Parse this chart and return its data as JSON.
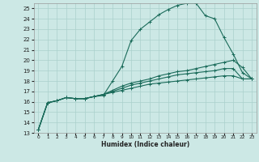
{
  "xlabel": "Humidex (Indice chaleur)",
  "background_color": "#cce8e5",
  "grid_color": "#aad0cc",
  "line_color": "#1a6b5a",
  "xlim": [
    -0.5,
    23.5
  ],
  "ylim": [
    13,
    25.5
  ],
  "xticks": [
    0,
    1,
    2,
    3,
    4,
    5,
    6,
    7,
    8,
    9,
    10,
    11,
    12,
    13,
    14,
    15,
    16,
    17,
    18,
    19,
    20,
    21,
    22,
    23
  ],
  "yticks": [
    13,
    14,
    15,
    16,
    17,
    18,
    19,
    20,
    21,
    22,
    23,
    24,
    25
  ],
  "series": [
    {
      "x": [
        0,
        1,
        2,
        3,
        4,
        5,
        6,
        7,
        8,
        9,
        10,
        11,
        12,
        13,
        14,
        15,
        16,
        17,
        18,
        19,
        20,
        21,
        22,
        23
      ],
      "y": [
        13.3,
        15.9,
        16.1,
        16.4,
        16.3,
        16.3,
        16.5,
        16.6,
        18.0,
        19.4,
        21.9,
        23.0,
        23.7,
        24.4,
        24.9,
        25.3,
        25.5,
        25.5,
        24.3,
        24.0,
        22.2,
        20.6,
        18.8,
        18.2
      ]
    },
    {
      "x": [
        0,
        1,
        2,
        3,
        4,
        5,
        6,
        7,
        8,
        9,
        10,
        11,
        12,
        13,
        14,
        15,
        16,
        17,
        18,
        19,
        20,
        21,
        22,
        23
      ],
      "y": [
        13.3,
        15.9,
        16.1,
        16.4,
        16.3,
        16.3,
        16.5,
        16.7,
        17.1,
        17.5,
        17.8,
        18.0,
        18.2,
        18.5,
        18.7,
        18.9,
        19.0,
        19.2,
        19.4,
        19.6,
        19.8,
        20.0,
        19.3,
        18.2
      ]
    },
    {
      "x": [
        0,
        1,
        2,
        3,
        4,
        5,
        6,
        7,
        8,
        9,
        10,
        11,
        12,
        13,
        14,
        15,
        16,
        17,
        18,
        19,
        20,
        21,
        22,
        23
      ],
      "y": [
        13.3,
        15.9,
        16.1,
        16.4,
        16.3,
        16.3,
        16.5,
        16.7,
        17.0,
        17.3,
        17.6,
        17.8,
        18.0,
        18.2,
        18.4,
        18.6,
        18.7,
        18.8,
        18.9,
        19.0,
        19.2,
        19.2,
        18.2,
        18.2
      ]
    },
    {
      "x": [
        0,
        1,
        2,
        3,
        4,
        5,
        6,
        7,
        8,
        9,
        10,
        11,
        12,
        13,
        14,
        15,
        16,
        17,
        18,
        19,
        20,
        21,
        22,
        23
      ],
      "y": [
        13.3,
        15.9,
        16.1,
        16.4,
        16.3,
        16.3,
        16.5,
        16.7,
        16.9,
        17.1,
        17.3,
        17.5,
        17.7,
        17.8,
        17.9,
        18.0,
        18.1,
        18.2,
        18.3,
        18.4,
        18.5,
        18.5,
        18.2,
        18.2
      ]
    }
  ]
}
